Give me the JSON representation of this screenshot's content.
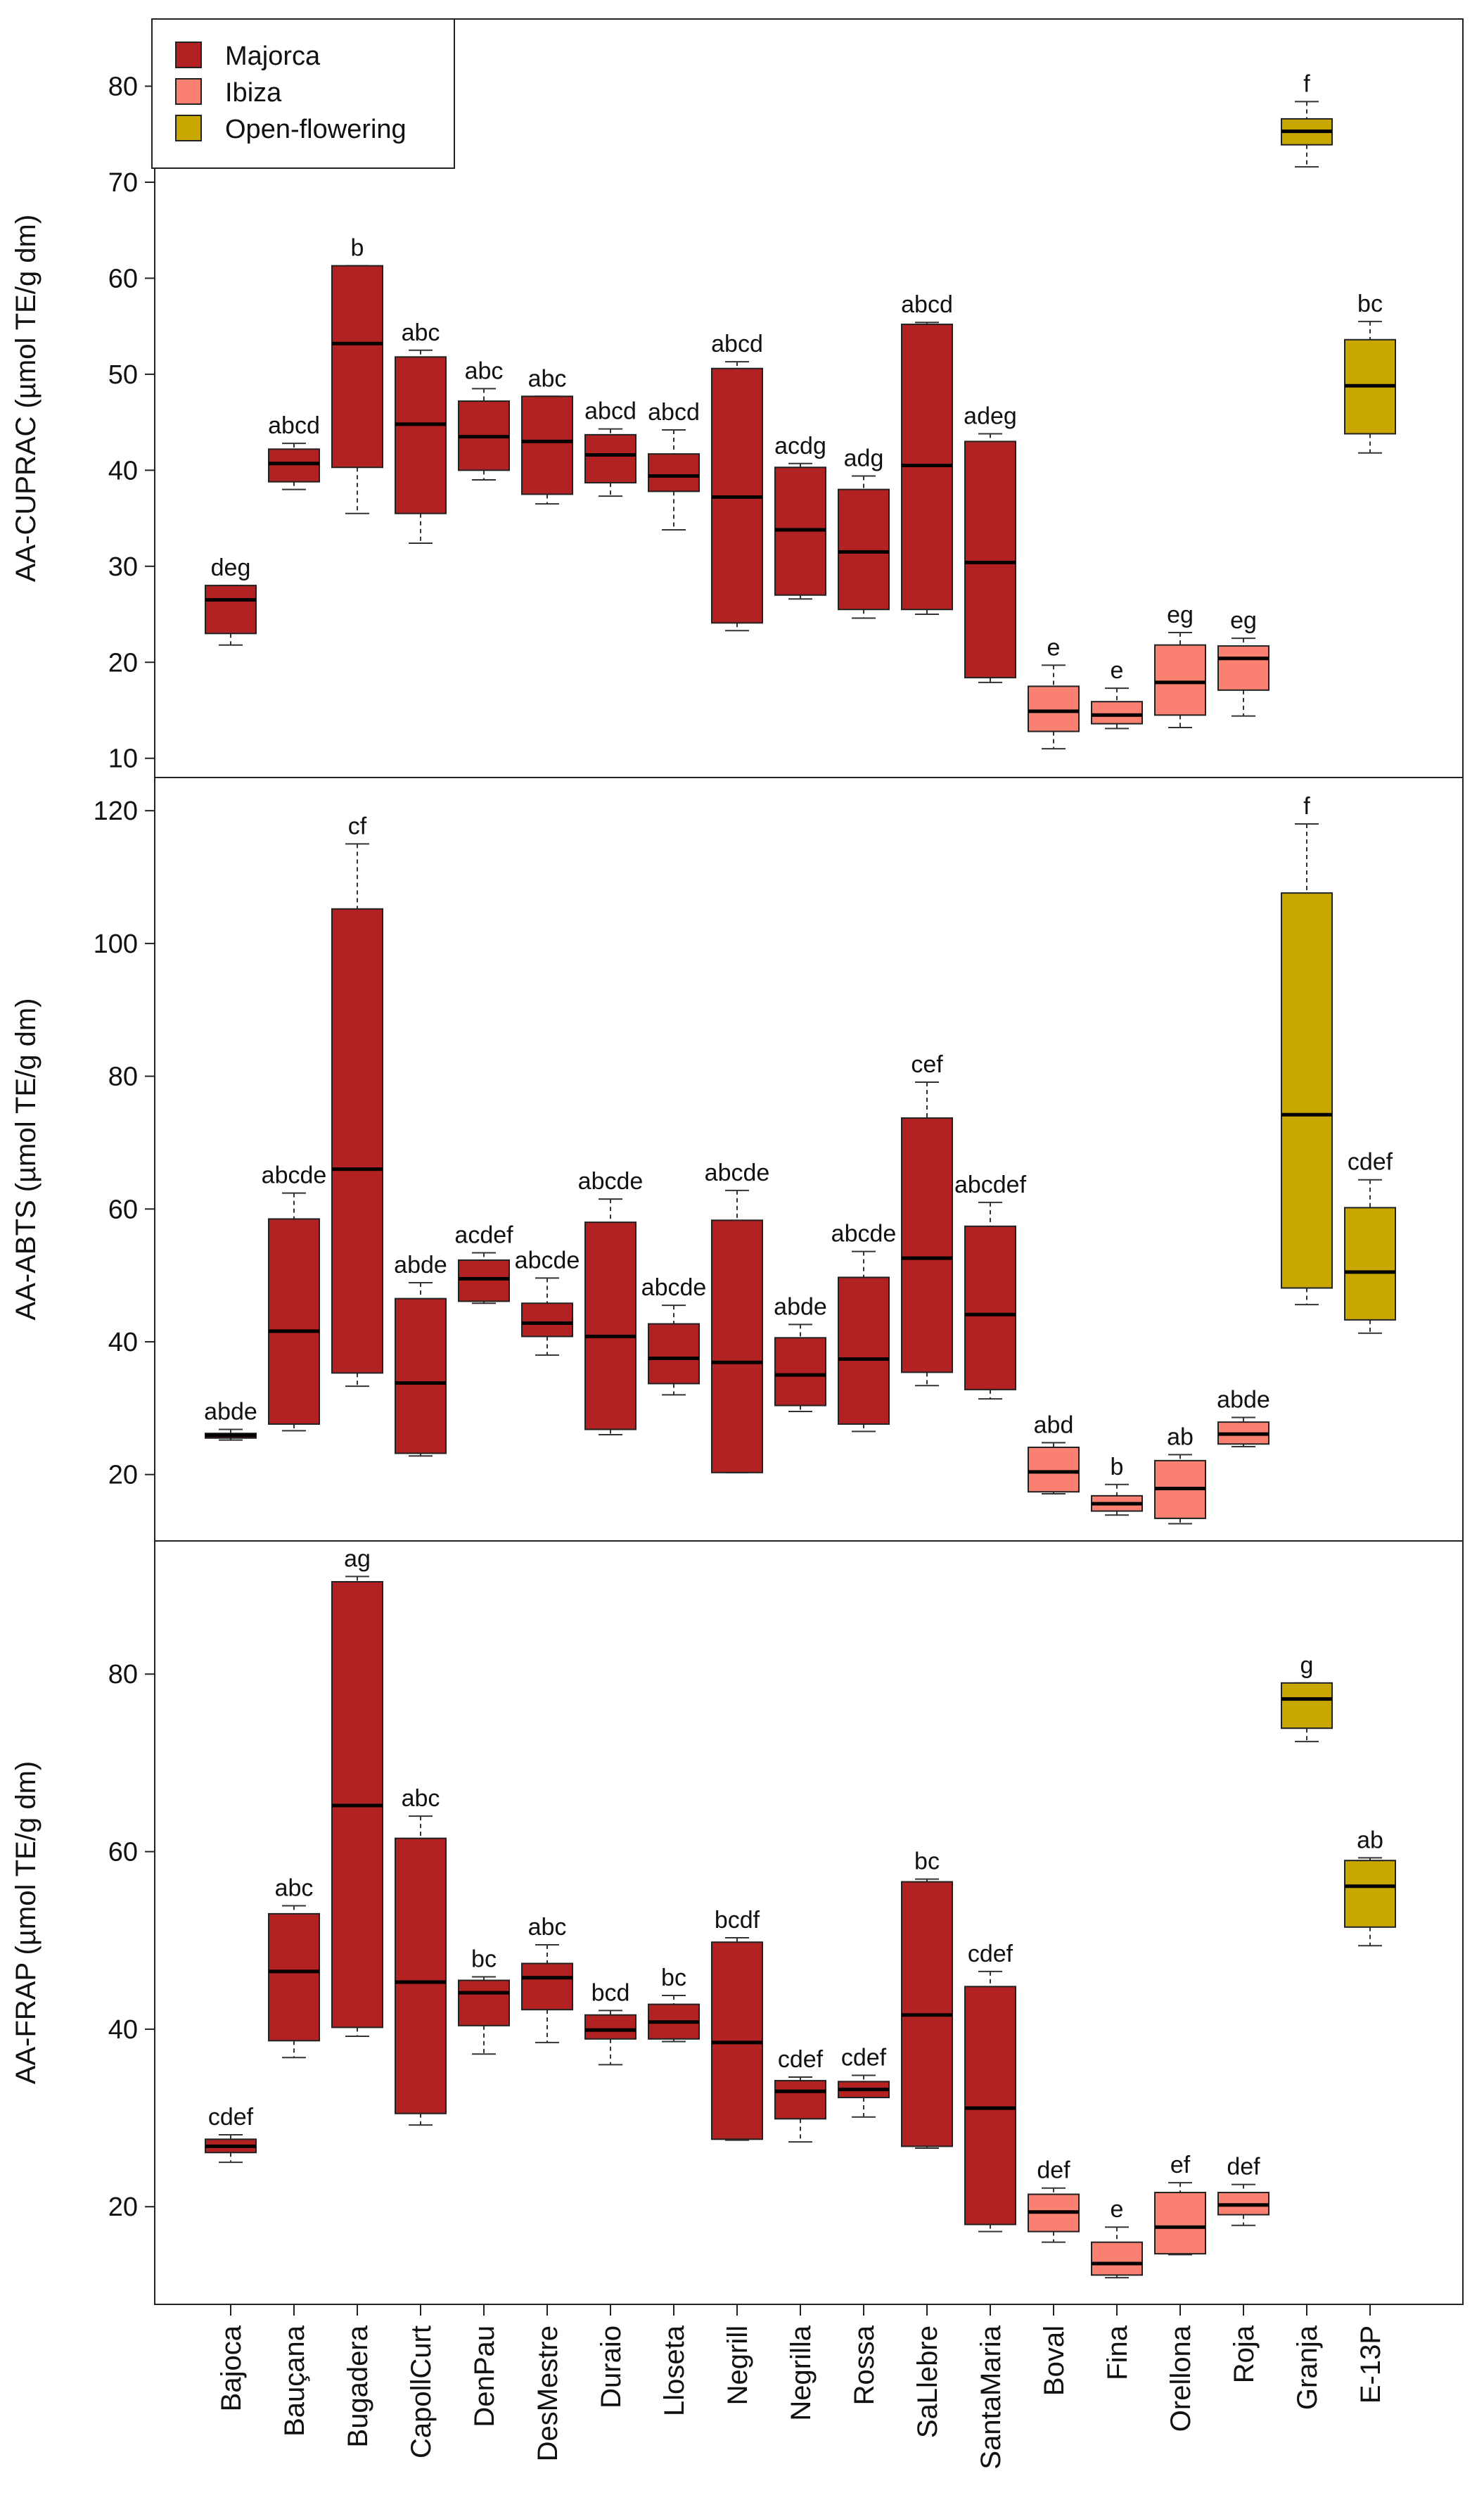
{
  "legend": [
    {
      "label": "Majorca",
      "color": "#b22222"
    },
    {
      "label": "Ibiza",
      "color": "#fa8072"
    },
    {
      "label": "Open-flowering",
      "color": "#c8a800"
    }
  ],
  "chart_data": [
    {
      "type": "box",
      "ylabel": "AA-CUPRAC (µmol TE/g dm)",
      "ylim": [
        8,
        87
      ],
      "yticks": [
        10,
        20,
        30,
        40,
        50,
        60,
        70,
        80
      ],
      "categories": [
        "Bajoca",
        "Bauçana",
        "Bugadera",
        "CapollCurt",
        "DenPau",
        "DesMestre",
        "Duraio",
        "Lloseta",
        "Negrill",
        "Negrilla",
        "Rossa",
        "SaLlebre",
        "SantaMaria",
        "Boval",
        "Fina",
        "Orellona",
        "Roja",
        "Granja",
        "E-13P"
      ],
      "groups": [
        "Majorca",
        "Majorca",
        "Majorca",
        "Majorca",
        "Majorca",
        "Majorca",
        "Majorca",
        "Majorca",
        "Majorca",
        "Majorca",
        "Majorca",
        "Majorca",
        "Majorca",
        "Ibiza",
        "Ibiza",
        "Ibiza",
        "Ibiza",
        "Open-flowering",
        "Open-flowering"
      ],
      "boxes": [
        {
          "min": 21.8,
          "q1": 23.0,
          "median": 26.5,
          "q3": 28.0,
          "max": 28.0,
          "label": "deg"
        },
        {
          "min": 38.0,
          "q1": 38.8,
          "median": 40.7,
          "q3": 42.2,
          "max": 42.8,
          "label": "abcd"
        },
        {
          "min": 35.5,
          "q1": 40.3,
          "median": 53.2,
          "q3": 61.3,
          "max": 61.3,
          "label": "b"
        },
        {
          "min": 32.4,
          "q1": 35.5,
          "median": 44.8,
          "q3": 51.8,
          "max": 52.5,
          "label": "abc"
        },
        {
          "min": 39.0,
          "q1": 40.0,
          "median": 43.5,
          "q3": 47.2,
          "max": 48.5,
          "label": "abc"
        },
        {
          "min": 36.5,
          "q1": 37.5,
          "median": 43.0,
          "q3": 47.7,
          "max": 47.7,
          "label": "abc"
        },
        {
          "min": 37.3,
          "q1": 38.7,
          "median": 41.6,
          "q3": 43.7,
          "max": 44.3,
          "label": "abcd"
        },
        {
          "min": 33.8,
          "q1": 37.8,
          "median": 39.4,
          "q3": 41.7,
          "max": 44.2,
          "label": "abcd"
        },
        {
          "min": 23.3,
          "q1": 24.1,
          "median": 37.2,
          "q3": 50.6,
          "max": 51.3,
          "label": "abcd"
        },
        {
          "min": 26.6,
          "q1": 27.0,
          "median": 33.8,
          "q3": 40.3,
          "max": 40.7,
          "label": "acdg"
        },
        {
          "min": 24.6,
          "q1": 25.5,
          "median": 31.5,
          "q3": 38.0,
          "max": 39.4,
          "label": "adg"
        },
        {
          "min": 25.0,
          "q1": 25.5,
          "median": 40.5,
          "q3": 55.2,
          "max": 55.4,
          "label": "abcd"
        },
        {
          "min": 17.9,
          "q1": 18.4,
          "median": 30.4,
          "q3": 43.0,
          "max": 43.8,
          "label": "adeg"
        },
        {
          "min": 11.0,
          "q1": 12.8,
          "median": 14.9,
          "q3": 17.5,
          "max": 19.7,
          "label": "e"
        },
        {
          "min": 13.1,
          "q1": 13.6,
          "median": 14.5,
          "q3": 15.9,
          "max": 17.3,
          "label": "e"
        },
        {
          "min": 13.2,
          "q1": 14.5,
          "median": 17.9,
          "q3": 21.8,
          "max": 23.1,
          "label": "eg"
        },
        {
          "min": 14.4,
          "q1": 17.1,
          "median": 20.4,
          "q3": 21.7,
          "max": 22.5,
          "label": "eg"
        },
        {
          "min": 71.6,
          "q1": 73.9,
          "median": 75.3,
          "q3": 76.6,
          "max": 78.4,
          "label": "f"
        },
        {
          "min": 41.8,
          "q1": 43.8,
          "median": 48.8,
          "q3": 53.6,
          "max": 55.5,
          "label": "bc"
        }
      ]
    },
    {
      "type": "box",
      "ylabel": "AA-ABTS (µmol TE/g dm)",
      "ylim": [
        10,
        125
      ],
      "yticks": [
        20,
        40,
        60,
        80,
        100,
        120
      ],
      "categories": [
        "Bajoca",
        "Bauçana",
        "Bugadera",
        "CapollCurt",
        "DenPau",
        "DesMestre",
        "Duraio",
        "Lloseta",
        "Negrill",
        "Negrilla",
        "Rossa",
        "SaLlebre",
        "SantaMaria",
        "Boval",
        "Fina",
        "Orellona",
        "Roja",
        "Granja",
        "E-13P"
      ],
      "groups": [
        "Majorca",
        "Majorca",
        "Majorca",
        "Majorca",
        "Majorca",
        "Majorca",
        "Majorca",
        "Majorca",
        "Majorca",
        "Majorca",
        "Majorca",
        "Majorca",
        "Majorca",
        "Ibiza",
        "Ibiza",
        "Ibiza",
        "Ibiza",
        "Open-flowering",
        "Open-flowering"
      ],
      "boxes": [
        {
          "min": 25.2,
          "q1": 25.5,
          "median": 25.9,
          "q3": 26.2,
          "max": 26.8,
          "label": "abde"
        },
        {
          "min": 26.6,
          "q1": 27.6,
          "median": 41.6,
          "q3": 58.5,
          "max": 62.4,
          "label": "abcde"
        },
        {
          "min": 33.3,
          "q1": 35.3,
          "median": 66.0,
          "q3": 105.2,
          "max": 115.0,
          "label": "cf"
        },
        {
          "min": 22.8,
          "q1": 23.2,
          "median": 33.8,
          "q3": 46.5,
          "max": 48.9,
          "label": "abde"
        },
        {
          "min": 45.8,
          "q1": 46.1,
          "median": 49.5,
          "q3": 52.3,
          "max": 53.4,
          "label": "acdef"
        },
        {
          "min": 38.0,
          "q1": 40.8,
          "median": 42.8,
          "q3": 45.8,
          "max": 49.6,
          "label": "abcde"
        },
        {
          "min": 26.0,
          "q1": 26.8,
          "median": 40.8,
          "q3": 58.0,
          "max": 61.5,
          "label": "abcde"
        },
        {
          "min": 32.0,
          "q1": 33.7,
          "median": 37.5,
          "q3": 42.7,
          "max": 45.5,
          "label": "abcde"
        },
        {
          "min": 20.3,
          "q1": 20.3,
          "median": 36.9,
          "q3": 58.3,
          "max": 62.8,
          "label": "abcde"
        },
        {
          "min": 29.5,
          "q1": 30.4,
          "median": 35.0,
          "q3": 40.6,
          "max": 42.6,
          "label": "abde"
        },
        {
          "min": 26.5,
          "q1": 27.6,
          "median": 37.4,
          "q3": 49.7,
          "max": 53.6,
          "label": "abcde"
        },
        {
          "min": 33.4,
          "q1": 35.4,
          "median": 52.6,
          "q3": 73.7,
          "max": 79.1,
          "label": "cef"
        },
        {
          "min": 31.4,
          "q1": 32.8,
          "median": 44.1,
          "q3": 57.4,
          "max": 61.0,
          "label": "abcdef"
        },
        {
          "min": 17.1,
          "q1": 17.4,
          "median": 20.4,
          "q3": 24.1,
          "max": 24.8,
          "label": "abd"
        },
        {
          "min": 13.9,
          "q1": 14.5,
          "median": 15.6,
          "q3": 16.8,
          "max": 18.5,
          "label": "b"
        },
        {
          "min": 12.6,
          "q1": 13.4,
          "median": 17.9,
          "q3": 22.1,
          "max": 23.0,
          "label": "ab"
        },
        {
          "min": 24.2,
          "q1": 24.6,
          "median": 26.1,
          "q3": 27.9,
          "max": 28.6,
          "label": "abde"
        },
        {
          "min": 45.6,
          "q1": 48.1,
          "median": 74.2,
          "q3": 107.6,
          "max": 118.0,
          "label": "f"
        },
        {
          "min": 41.3,
          "q1": 43.3,
          "median": 50.5,
          "q3": 60.2,
          "max": 64.4,
          "label": "cdef"
        }
      ]
    },
    {
      "type": "box",
      "ylabel": "AA-FRAP (µmol TE/g dm)",
      "ylim": [
        9,
        95
      ],
      "yticks": [
        20,
        40,
        60,
        80
      ],
      "categories": [
        "Bajoca",
        "Bauçana",
        "Bugadera",
        "CapollCurt",
        "DenPau",
        "DesMestre",
        "Duraio",
        "Lloseta",
        "Negrill",
        "Negrilla",
        "Rossa",
        "SaLlebre",
        "SantaMaria",
        "Boval",
        "Fina",
        "Orellona",
        "Roja",
        "Granja",
        "E-13P"
      ],
      "groups": [
        "Majorca",
        "Majorca",
        "Majorca",
        "Majorca",
        "Majorca",
        "Majorca",
        "Majorca",
        "Majorca",
        "Majorca",
        "Majorca",
        "Majorca",
        "Majorca",
        "Majorca",
        "Ibiza",
        "Ibiza",
        "Ibiza",
        "Ibiza",
        "Open-flowering",
        "Open-flowering"
      ],
      "boxes": [
        {
          "min": 25.0,
          "q1": 26.1,
          "median": 26.8,
          "q3": 27.6,
          "max": 28.1,
          "label": "cdef"
        },
        {
          "min": 36.8,
          "q1": 38.7,
          "median": 46.5,
          "q3": 53.0,
          "max": 53.9,
          "label": "abc"
        },
        {
          "min": 39.2,
          "q1": 40.2,
          "median": 65.2,
          "q3": 90.4,
          "max": 91.0,
          "label": "ag"
        },
        {
          "min": 29.2,
          "q1": 30.5,
          "median": 45.3,
          "q3": 61.5,
          "max": 64.0,
          "label": "abc"
        },
        {
          "min": 37.2,
          "q1": 40.4,
          "median": 44.1,
          "q3": 45.5,
          "max": 45.9,
          "label": "bc"
        },
        {
          "min": 38.5,
          "q1": 42.2,
          "median": 45.8,
          "q3": 47.4,
          "max": 49.5,
          "label": "abc"
        },
        {
          "min": 36.0,
          "q1": 38.9,
          "median": 39.9,
          "q3": 41.6,
          "max": 42.1,
          "label": "bcd"
        },
        {
          "min": 38.6,
          "q1": 38.9,
          "median": 40.8,
          "q3": 42.8,
          "max": 43.8,
          "label": "bc"
        },
        {
          "min": 27.5,
          "q1": 27.6,
          "median": 38.5,
          "q3": 49.8,
          "max": 50.3,
          "label": "bcdf"
        },
        {
          "min": 27.3,
          "q1": 29.9,
          "median": 33.0,
          "q3": 34.2,
          "max": 34.6,
          "label": "cdef"
        },
        {
          "min": 30.1,
          "q1": 32.3,
          "median": 33.2,
          "q3": 34.1,
          "max": 34.8,
          "label": "cdef"
        },
        {
          "min": 26.6,
          "q1": 26.8,
          "median": 41.6,
          "q3": 56.6,
          "max": 56.9,
          "label": "bc"
        },
        {
          "min": 17.2,
          "q1": 18.0,
          "median": 31.1,
          "q3": 44.8,
          "max": 46.5,
          "label": "cdef"
        },
        {
          "min": 16.0,
          "q1": 17.2,
          "median": 19.4,
          "q3": 21.4,
          "max": 22.1,
          "label": "def"
        },
        {
          "min": 12.0,
          "q1": 12.3,
          "median": 13.6,
          "q3": 16.0,
          "max": 17.7,
          "label": "e"
        },
        {
          "min": 14.6,
          "q1": 14.7,
          "median": 17.7,
          "q3": 21.6,
          "max": 22.7,
          "label": "ef"
        },
        {
          "min": 17.9,
          "q1": 19.1,
          "median": 20.2,
          "q3": 21.6,
          "max": 22.5,
          "label": "def"
        },
        {
          "min": 72.4,
          "q1": 73.9,
          "median": 77.2,
          "q3": 79.0,
          "max": 79.0,
          "label": "g"
        },
        {
          "min": 49.4,
          "q1": 51.5,
          "median": 56.1,
          "q3": 59.0,
          "max": 59.3,
          "label": "ab"
        }
      ]
    }
  ]
}
